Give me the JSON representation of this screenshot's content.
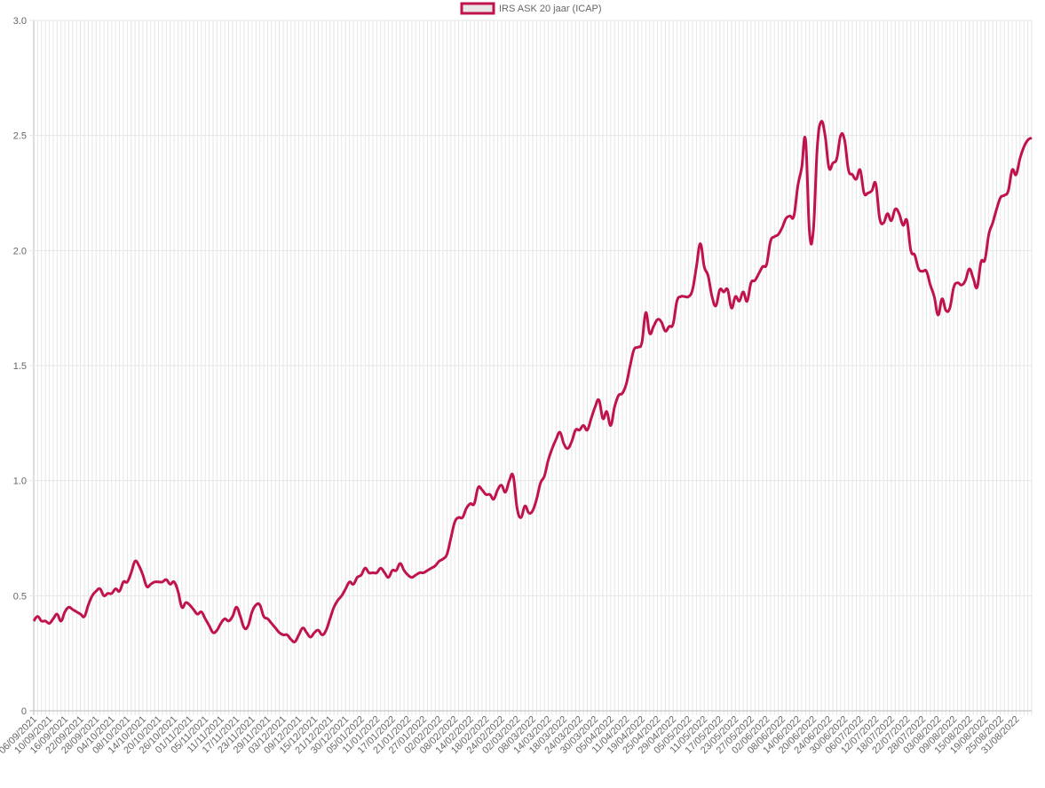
{
  "chart_data": {
    "type": "line",
    "series": [
      {
        "name": "IRS ASK 20 jaar (ICAP)",
        "color": "#c0134b",
        "fill": "#e9e5e7",
        "values": [
          0.39,
          0.41,
          0.39,
          0.39,
          0.38,
          0.4,
          0.42,
          0.39,
          0.43,
          0.45,
          0.44,
          0.43,
          0.42,
          0.41,
          0.46,
          0.5,
          0.52,
          0.53,
          0.5,
          0.51,
          0.51,
          0.53,
          0.52,
          0.56,
          0.56,
          0.6,
          0.65,
          0.63,
          0.59,
          0.54,
          0.55,
          0.56,
          0.56,
          0.56,
          0.57,
          0.55,
          0.56,
          0.52,
          0.45,
          0.47,
          0.46,
          0.44,
          0.42,
          0.43,
          0.4,
          0.37,
          0.34,
          0.35,
          0.38,
          0.4,
          0.39,
          0.41,
          0.45,
          0.41,
          0.36,
          0.37,
          0.43,
          0.46,
          0.46,
          0.41,
          0.4,
          0.38,
          0.36,
          0.34,
          0.33,
          0.33,
          0.31,
          0.3,
          0.33,
          0.36,
          0.34,
          0.32,
          0.34,
          0.35,
          0.33,
          0.35,
          0.4,
          0.45,
          0.48,
          0.5,
          0.53,
          0.56,
          0.55,
          0.58,
          0.59,
          0.62,
          0.6,
          0.6,
          0.6,
          0.62,
          0.6,
          0.58,
          0.61,
          0.61,
          0.64,
          0.61,
          0.59,
          0.58,
          0.59,
          0.6,
          0.6,
          0.61,
          0.62,
          0.63,
          0.65,
          0.66,
          0.68,
          0.75,
          0.82,
          0.84,
          0.84,
          0.88,
          0.9,
          0.9,
          0.97,
          0.96,
          0.94,
          0.94,
          0.92,
          0.96,
          0.98,
          0.95,
          1.0,
          1.02,
          0.88,
          0.84,
          0.89,
          0.86,
          0.87,
          0.92,
          0.99,
          1.02,
          1.09,
          1.14,
          1.18,
          1.21,
          1.16,
          1.14,
          1.17,
          1.22,
          1.22,
          1.24,
          1.22,
          1.27,
          1.32,
          1.35,
          1.27,
          1.3,
          1.24,
          1.32,
          1.37,
          1.38,
          1.42,
          1.5,
          1.57,
          1.58,
          1.6,
          1.73,
          1.64,
          1.67,
          1.7,
          1.69,
          1.65,
          1.67,
          1.68,
          1.78,
          1.8,
          1.8,
          1.8,
          1.83,
          1.93,
          2.03,
          1.93,
          1.89,
          1.8,
          1.76,
          1.83,
          1.82,
          1.83,
          1.75,
          1.8,
          1.78,
          1.82,
          1.78,
          1.86,
          1.87,
          1.9,
          1.93,
          1.94,
          2.04,
          2.06,
          2.07,
          2.1,
          2.14,
          2.15,
          2.15,
          2.28,
          2.36,
          2.48,
          2.08,
          2.09,
          2.45,
          2.56,
          2.5,
          2.36,
          2.38,
          2.4,
          2.5,
          2.48,
          2.35,
          2.33,
          2.31,
          2.35,
          2.25,
          2.25,
          2.26,
          2.29,
          2.14,
          2.12,
          2.16,
          2.13,
          2.18,
          2.16,
          2.11,
          2.13,
          2.0,
          1.98,
          1.92,
          1.91,
          1.91,
          1.85,
          1.8,
          1.72,
          1.79,
          1.74,
          1.75,
          1.84,
          1.86,
          1.85,
          1.87,
          1.92,
          1.88,
          1.84,
          1.95,
          1.96,
          2.07,
          2.12,
          2.18,
          2.23,
          2.24,
          2.26,
          2.35,
          2.33,
          2.4,
          2.45,
          2.48,
          2.49
        ]
      }
    ],
    "categories": [
      "06/09/2021",
      null,
      null,
      null,
      "10/09/2021",
      null,
      null,
      null,
      "16/09/2021",
      null,
      null,
      null,
      "22/09/2021",
      null,
      null,
      null,
      "28/09/2021",
      null,
      null,
      null,
      "04/10/2021",
      null,
      null,
      null,
      "08/10/2021",
      null,
      null,
      null,
      "14/10/2021",
      null,
      null,
      null,
      "20/10/2021",
      null,
      null,
      null,
      "26/10/2021",
      null,
      null,
      null,
      "01/11/2021",
      null,
      null,
      null,
      "05/11/2021",
      null,
      null,
      null,
      "11/11/2021",
      null,
      null,
      null,
      "17/11/2021",
      null,
      null,
      null,
      "23/11/2021",
      null,
      null,
      null,
      "29/11/2021",
      null,
      null,
      null,
      "03/12/2021",
      null,
      null,
      null,
      "09/12/2021",
      null,
      null,
      null,
      "15/12/2021",
      null,
      null,
      null,
      "21/12/2021",
      null,
      null,
      null,
      "30/12/2021",
      null,
      null,
      null,
      "05/01/2022",
      null,
      null,
      null,
      "11/01/2022",
      null,
      null,
      null,
      "17/01/2022",
      null,
      null,
      null,
      "21/01/2022",
      null,
      null,
      null,
      "27/01/2022",
      null,
      null,
      null,
      "02/02/2022",
      null,
      null,
      null,
      "08/02/2022",
      null,
      null,
      null,
      "14/02/2022",
      null,
      null,
      null,
      "18/02/2022",
      null,
      null,
      null,
      "24/02/2022",
      null,
      null,
      null,
      "02/03/2022",
      null,
      null,
      null,
      "08/03/2022",
      null,
      null,
      null,
      "14/03/2022",
      null,
      null,
      null,
      "18/03/2022",
      null,
      null,
      null,
      "24/03/2022",
      null,
      null,
      null,
      "30/03/2022",
      null,
      null,
      null,
      "05/04/2022",
      null,
      null,
      null,
      "11/04/2022",
      null,
      null,
      null,
      "19/04/2022",
      null,
      null,
      null,
      "25/04/2022",
      null,
      null,
      null,
      "29/04/2022",
      null,
      null,
      null,
      "05/05/2022",
      null,
      null,
      null,
      "11/05/2022",
      null,
      null,
      null,
      "17/05/2022",
      null,
      null,
      null,
      "23/05/2022",
      null,
      null,
      null,
      "27/05/2022",
      null,
      null,
      null,
      "02/06/2022",
      null,
      null,
      null,
      "08/06/2022",
      null,
      null,
      null,
      "14/06/2022",
      null,
      null,
      null,
      "20/06/2022",
      null,
      null,
      null,
      "24/06/2022",
      null,
      null,
      null,
      "30/06/2022",
      null,
      null,
      null,
      "06/07/2022",
      null,
      null,
      null,
      "12/07/2022",
      null,
      null,
      null,
      "18/07/2022",
      null,
      null,
      null,
      "22/07/2022",
      null,
      null,
      null,
      "28/07/2022",
      null,
      null,
      null,
      "03/08/2022",
      null,
      null,
      null,
      "09/08/2022",
      null,
      null,
      null,
      "15/08/2022",
      null,
      null,
      null,
      "19/08/2022",
      null,
      null,
      null,
      "25/08/2022",
      null,
      null,
      null,
      "31/08/2022",
      null,
      null,
      null,
      null
    ],
    "ylim": [
      0,
      3
    ],
    "yticks": [
      0,
      0.5,
      {
        "value": 1,
        "label": "1.0"
      },
      {
        "value": 1.5,
        "label": "1.5"
      },
      {
        "value": 2,
        "label": "2.0"
      },
      {
        "value": 2.5,
        "label": "2.5"
      },
      {
        "value": 3,
        "label": "3.0"
      }
    ],
    "grid": true,
    "legend": "top"
  }
}
